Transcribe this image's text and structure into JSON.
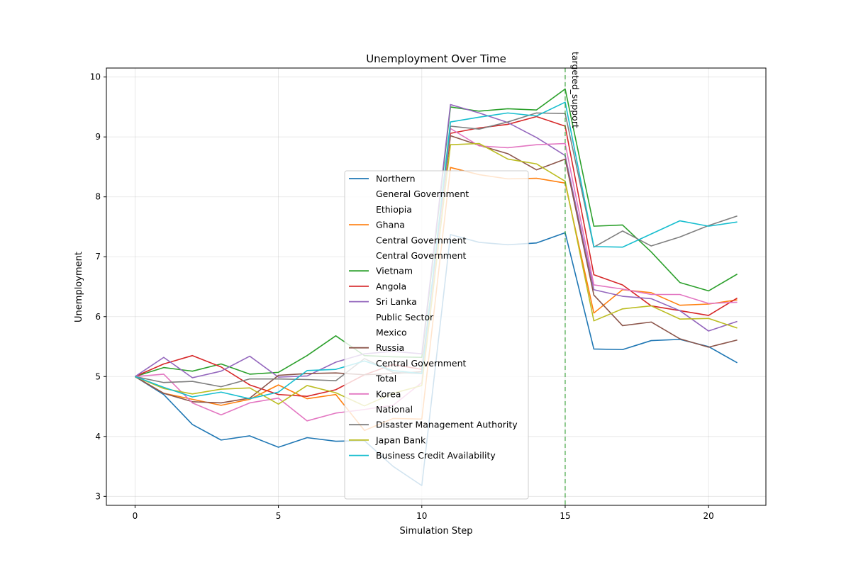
{
  "chart_data": {
    "type": "line",
    "title": "Unemployment Over Time",
    "xlabel": "Simulation Step",
    "ylabel": "Unemployment",
    "xlim": [
      -1,
      22
    ],
    "ylim": [
      2.85,
      10.15
    ],
    "grid": true,
    "legend_placement": "center",
    "x_ticks": [
      0,
      5,
      10,
      15,
      20
    ],
    "y_ticks": [
      3,
      4,
      5,
      6,
      7,
      8,
      9,
      10
    ],
    "x": [
      0,
      1,
      2,
      3,
      4,
      5,
      6,
      7,
      8,
      9,
      10,
      11,
      12,
      13,
      14,
      15,
      16,
      17,
      18,
      19,
      20,
      21
    ],
    "annotation": {
      "x": 15,
      "label": "targeted_support",
      "color": "#2ca02c"
    },
    "series": [
      {
        "name": "Northern",
        "color": "#1f77b4",
        "values": [
          5.0,
          4.7,
          4.2,
          3.94,
          4.01,
          3.82,
          3.98,
          3.92,
          3.93,
          3.5,
          3.18,
          7.37,
          7.24,
          7.2,
          7.23,
          7.4,
          5.46,
          5.45,
          5.6,
          5.62,
          5.5,
          5.23
        ]
      },
      {
        "name": "General Government",
        "color": null
      },
      {
        "name": "Ethiopia",
        "color": null
      },
      {
        "name": "Ghana",
        "color": "#ff7f0e",
        "values": [
          5.0,
          4.72,
          4.62,
          4.52,
          4.62,
          4.86,
          4.63,
          4.7,
          4.1,
          4.3,
          4.29,
          8.49,
          8.37,
          8.3,
          8.31,
          8.23,
          6.06,
          6.45,
          6.4,
          6.19,
          6.21,
          6.28
        ]
      },
      {
        "name": "Central Government",
        "color": null
      },
      {
        "name": "Central Government",
        "color": null
      },
      {
        "name": "Vietnam",
        "color": "#2ca02c",
        "values": [
          5.0,
          5.15,
          5.09,
          5.21,
          5.04,
          5.07,
          5.35,
          5.68,
          5.35,
          5.33,
          5.32,
          9.5,
          9.43,
          9.47,
          9.45,
          9.8,
          7.51,
          7.53,
          7.08,
          6.57,
          6.43,
          6.71
        ]
      },
      {
        "name": "Angola",
        "color": "#d62728",
        "values": [
          5.0,
          5.21,
          5.35,
          5.16,
          4.86,
          4.7,
          4.67,
          4.78,
          5.03,
          5.2,
          5.12,
          9.06,
          9.15,
          9.21,
          9.34,
          9.18,
          6.7,
          6.53,
          6.18,
          6.1,
          6.02,
          6.31
        ]
      },
      {
        "name": "Sri Lanka",
        "color": "#9467bd",
        "values": [
          5.0,
          5.32,
          4.98,
          5.09,
          5.34,
          4.99,
          5.01,
          5.24,
          5.38,
          5.42,
          5.38,
          9.54,
          9.4,
          9.24,
          8.99,
          8.69,
          6.45,
          6.34,
          6.3,
          6.1,
          5.76,
          5.92
        ]
      },
      {
        "name": "Public Sector",
        "color": null
      },
      {
        "name": "Mexico",
        "color": null
      },
      {
        "name": "Russia",
        "color": "#8c564b",
        "values": [
          5.0,
          4.72,
          4.58,
          4.56,
          4.64,
          5.02,
          5.05,
          5.06,
          5.03,
          5.05,
          5.08,
          9.02,
          8.86,
          8.72,
          8.45,
          8.63,
          6.36,
          5.85,
          5.91,
          5.63,
          5.49,
          5.61
        ]
      },
      {
        "name": "Central Government",
        "color": null
      },
      {
        "name": "Total",
        "color": null
      },
      {
        "name": "Korea",
        "color": "#e377c2",
        "values": [
          5.0,
          5.04,
          4.56,
          4.36,
          4.56,
          4.64,
          4.26,
          4.39,
          4.45,
          4.52,
          4.9,
          9.14,
          8.85,
          8.82,
          8.87,
          8.89,
          6.53,
          6.46,
          6.37,
          6.37,
          6.22,
          6.24
        ]
      },
      {
        "name": "National",
        "color": null
      },
      {
        "name": "Disaster Management Authority",
        "color": "#7f7f7f",
        "values": [
          5.0,
          4.9,
          4.92,
          4.83,
          4.96,
          4.96,
          4.95,
          4.93,
          5.3,
          5.07,
          5.05,
          9.18,
          9.13,
          9.25,
          9.4,
          9.39,
          7.16,
          7.43,
          7.18,
          7.33,
          7.52,
          7.68
        ]
      },
      {
        "name": "Japan Bank",
        "color": "#bcbd22",
        "values": [
          5.0,
          4.8,
          4.71,
          4.79,
          4.81,
          4.54,
          4.85,
          4.73,
          4.51,
          4.72,
          4.85,
          8.87,
          8.89,
          8.63,
          8.55,
          8.26,
          5.93,
          6.13,
          6.18,
          5.96,
          5.97,
          5.81
        ]
      },
      {
        "name": "Business Credit Availability",
        "color": "#17becf",
        "values": [
          5.0,
          4.82,
          4.66,
          4.74,
          4.63,
          4.74,
          5.1,
          5.12,
          5.26,
          5.1,
          5.05,
          9.25,
          9.33,
          9.4,
          9.35,
          9.58,
          7.17,
          7.16,
          7.38,
          7.6,
          7.51,
          7.58
        ]
      }
    ]
  }
}
